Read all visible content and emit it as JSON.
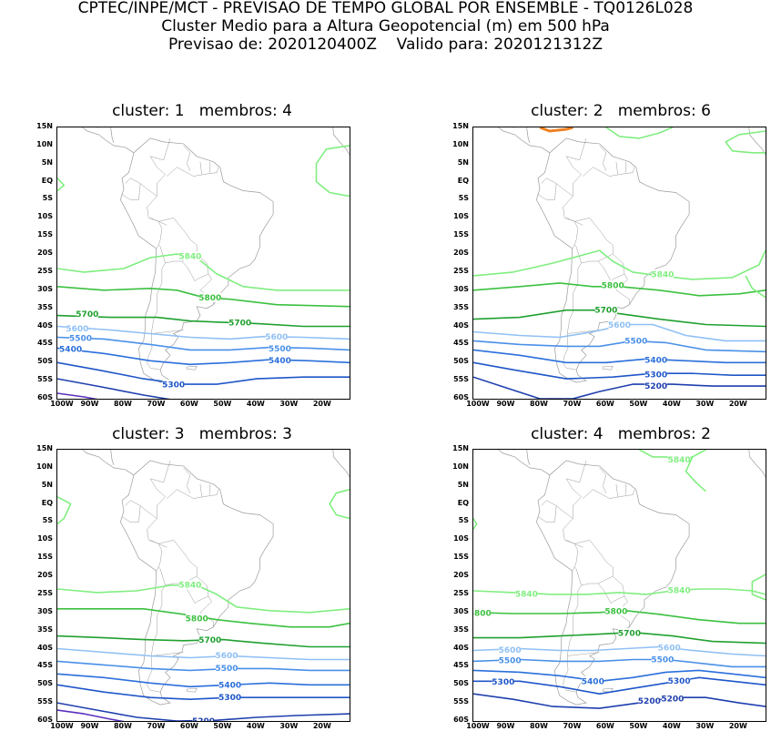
{
  "header": {
    "line1": "CPTEC/INPE/MCT - PREVISAO DE TEMPO GLOBAL POR ENSEMBLE - TQ0126L028",
    "line2": "Cluster Medio para a Altura Geopotencial (m) em 500 hPa",
    "line3": "Previsao de: 2020120400Z    Valido para: 2020121312Z"
  },
  "axes": {
    "lat_labels": [
      "15N",
      "10N",
      "5N",
      "EQ",
      "5S",
      "10S",
      "15S",
      "20S",
      "25S",
      "30S",
      "35S",
      "40S",
      "45S",
      "50S",
      "55S",
      "60S"
    ],
    "lon_labels": [
      "100W",
      "90W",
      "80W",
      "70W",
      "60W",
      "50W",
      "40W",
      "30W",
      "20W"
    ]
  },
  "colors": {
    "c5200": "#1f3fae",
    "c5300": "#1f56c8",
    "c5400": "#2a6fdb",
    "c5500": "#4a90e8",
    "c5600": "#8fc0f4",
    "c5700": "#20a030",
    "c5800": "#3cc040",
    "c5840": "#80ee80",
    "c5100": "#5a30c0",
    "high": "#f08020",
    "coast": "#9a9a9a"
  },
  "panels": [
    {
      "title": "cluster: 1   membros: 4",
      "contours": [
        {
          "level": 5840,
          "label": "5840"
        },
        {
          "level": 5800,
          "label": "5800"
        },
        {
          "level": 5700,
          "label": "5700"
        },
        {
          "level": 5600,
          "label": "5600"
        },
        {
          "level": 5500,
          "label": "5500"
        },
        {
          "level": 5400,
          "label": "5400"
        },
        {
          "level": 5300,
          "label": "5300"
        }
      ]
    },
    {
      "title": "cluster: 2   membros: 6",
      "contours": [
        {
          "level": 5840,
          "label": "5840"
        },
        {
          "level": 5800,
          "label": "5800"
        },
        {
          "level": 5700,
          "label": "5700"
        },
        {
          "level": 5600,
          "label": "5600"
        },
        {
          "level": 5500,
          "label": "5500"
        },
        {
          "level": 5400,
          "label": "5400"
        },
        {
          "level": 5300,
          "label": "5300"
        },
        {
          "level": 5200,
          "label": "5200"
        }
      ]
    },
    {
      "title": "cluster: 3   membros: 3",
      "contours": [
        {
          "level": 5840,
          "label": "5840"
        },
        {
          "level": 5800,
          "label": "5800"
        },
        {
          "level": 5700,
          "label": "5700"
        },
        {
          "level": 5600,
          "label": "5600"
        },
        {
          "level": 5500,
          "label": "5500"
        },
        {
          "level": 5400,
          "label": "5400"
        },
        {
          "level": 5300,
          "label": "5300"
        },
        {
          "level": 5200,
          "label": "5200"
        }
      ]
    },
    {
      "title": "cluster: 4   membros: 2",
      "contours": [
        {
          "level": 5840,
          "label": "5840"
        },
        {
          "level": 5800,
          "label": "5800"
        },
        {
          "level": 5700,
          "label": "5700"
        },
        {
          "level": 5600,
          "label": "5600"
        },
        {
          "level": 5500,
          "label": "5500"
        },
        {
          "level": 5400,
          "label": "5400"
        },
        {
          "level": 5300,
          "label": "5300"
        },
        {
          "level": 5200,
          "label": "5200"
        }
      ]
    }
  ]
}
